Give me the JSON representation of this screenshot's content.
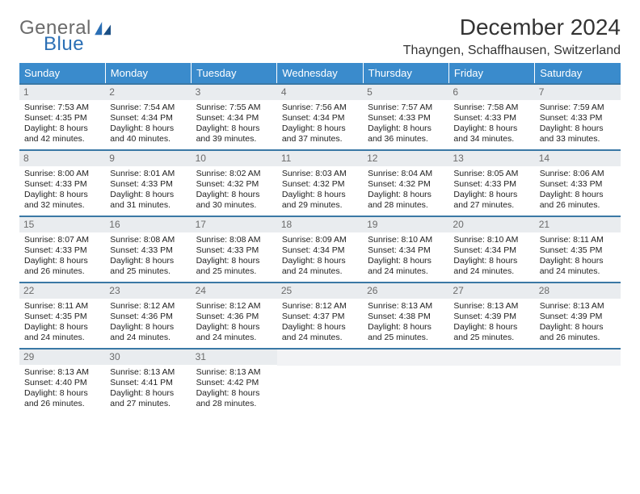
{
  "logo": {
    "word1": "General",
    "word2": "Blue"
  },
  "title": "December 2024",
  "location": "Thayngen, Schaffhausen, Switzerland",
  "colors": {
    "header_bg": "#3a8bcc",
    "header_text": "#ffffff",
    "row_border": "#3a78a5",
    "daynum_bg": "#e9ecef",
    "daynum_text": "#6b6b6b",
    "logo_gray": "#6b6b6b",
    "logo_blue": "#2b6fb5",
    "page_bg": "#ffffff"
  },
  "day_headers": [
    "Sunday",
    "Monday",
    "Tuesday",
    "Wednesday",
    "Thursday",
    "Friday",
    "Saturday"
  ],
  "weeks": [
    [
      {
        "n": "1",
        "sr": "Sunrise: 7:53 AM",
        "ss": "Sunset: 4:35 PM",
        "d1": "Daylight: 8 hours",
        "d2": "and 42 minutes."
      },
      {
        "n": "2",
        "sr": "Sunrise: 7:54 AM",
        "ss": "Sunset: 4:34 PM",
        "d1": "Daylight: 8 hours",
        "d2": "and 40 minutes."
      },
      {
        "n": "3",
        "sr": "Sunrise: 7:55 AM",
        "ss": "Sunset: 4:34 PM",
        "d1": "Daylight: 8 hours",
        "d2": "and 39 minutes."
      },
      {
        "n": "4",
        "sr": "Sunrise: 7:56 AM",
        "ss": "Sunset: 4:34 PM",
        "d1": "Daylight: 8 hours",
        "d2": "and 37 minutes."
      },
      {
        "n": "5",
        "sr": "Sunrise: 7:57 AM",
        "ss": "Sunset: 4:33 PM",
        "d1": "Daylight: 8 hours",
        "d2": "and 36 minutes."
      },
      {
        "n": "6",
        "sr": "Sunrise: 7:58 AM",
        "ss": "Sunset: 4:33 PM",
        "d1": "Daylight: 8 hours",
        "d2": "and 34 minutes."
      },
      {
        "n": "7",
        "sr": "Sunrise: 7:59 AM",
        "ss": "Sunset: 4:33 PM",
        "d1": "Daylight: 8 hours",
        "d2": "and 33 minutes."
      }
    ],
    [
      {
        "n": "8",
        "sr": "Sunrise: 8:00 AM",
        "ss": "Sunset: 4:33 PM",
        "d1": "Daylight: 8 hours",
        "d2": "and 32 minutes."
      },
      {
        "n": "9",
        "sr": "Sunrise: 8:01 AM",
        "ss": "Sunset: 4:33 PM",
        "d1": "Daylight: 8 hours",
        "d2": "and 31 minutes."
      },
      {
        "n": "10",
        "sr": "Sunrise: 8:02 AM",
        "ss": "Sunset: 4:32 PM",
        "d1": "Daylight: 8 hours",
        "d2": "and 30 minutes."
      },
      {
        "n": "11",
        "sr": "Sunrise: 8:03 AM",
        "ss": "Sunset: 4:32 PM",
        "d1": "Daylight: 8 hours",
        "d2": "and 29 minutes."
      },
      {
        "n": "12",
        "sr": "Sunrise: 8:04 AM",
        "ss": "Sunset: 4:32 PM",
        "d1": "Daylight: 8 hours",
        "d2": "and 28 minutes."
      },
      {
        "n": "13",
        "sr": "Sunrise: 8:05 AM",
        "ss": "Sunset: 4:33 PM",
        "d1": "Daylight: 8 hours",
        "d2": "and 27 minutes."
      },
      {
        "n": "14",
        "sr": "Sunrise: 8:06 AM",
        "ss": "Sunset: 4:33 PM",
        "d1": "Daylight: 8 hours",
        "d2": "and 26 minutes."
      }
    ],
    [
      {
        "n": "15",
        "sr": "Sunrise: 8:07 AM",
        "ss": "Sunset: 4:33 PM",
        "d1": "Daylight: 8 hours",
        "d2": "and 26 minutes."
      },
      {
        "n": "16",
        "sr": "Sunrise: 8:08 AM",
        "ss": "Sunset: 4:33 PM",
        "d1": "Daylight: 8 hours",
        "d2": "and 25 minutes."
      },
      {
        "n": "17",
        "sr": "Sunrise: 8:08 AM",
        "ss": "Sunset: 4:33 PM",
        "d1": "Daylight: 8 hours",
        "d2": "and 25 minutes."
      },
      {
        "n": "18",
        "sr": "Sunrise: 8:09 AM",
        "ss": "Sunset: 4:34 PM",
        "d1": "Daylight: 8 hours",
        "d2": "and 24 minutes."
      },
      {
        "n": "19",
        "sr": "Sunrise: 8:10 AM",
        "ss": "Sunset: 4:34 PM",
        "d1": "Daylight: 8 hours",
        "d2": "and 24 minutes."
      },
      {
        "n": "20",
        "sr": "Sunrise: 8:10 AM",
        "ss": "Sunset: 4:34 PM",
        "d1": "Daylight: 8 hours",
        "d2": "and 24 minutes."
      },
      {
        "n": "21",
        "sr": "Sunrise: 8:11 AM",
        "ss": "Sunset: 4:35 PM",
        "d1": "Daylight: 8 hours",
        "d2": "and 24 minutes."
      }
    ],
    [
      {
        "n": "22",
        "sr": "Sunrise: 8:11 AM",
        "ss": "Sunset: 4:35 PM",
        "d1": "Daylight: 8 hours",
        "d2": "and 24 minutes."
      },
      {
        "n": "23",
        "sr": "Sunrise: 8:12 AM",
        "ss": "Sunset: 4:36 PM",
        "d1": "Daylight: 8 hours",
        "d2": "and 24 minutes."
      },
      {
        "n": "24",
        "sr": "Sunrise: 8:12 AM",
        "ss": "Sunset: 4:36 PM",
        "d1": "Daylight: 8 hours",
        "d2": "and 24 minutes."
      },
      {
        "n": "25",
        "sr": "Sunrise: 8:12 AM",
        "ss": "Sunset: 4:37 PM",
        "d1": "Daylight: 8 hours",
        "d2": "and 24 minutes."
      },
      {
        "n": "26",
        "sr": "Sunrise: 8:13 AM",
        "ss": "Sunset: 4:38 PM",
        "d1": "Daylight: 8 hours",
        "d2": "and 25 minutes."
      },
      {
        "n": "27",
        "sr": "Sunrise: 8:13 AM",
        "ss": "Sunset: 4:39 PM",
        "d1": "Daylight: 8 hours",
        "d2": "and 25 minutes."
      },
      {
        "n": "28",
        "sr": "Sunrise: 8:13 AM",
        "ss": "Sunset: 4:39 PM",
        "d1": "Daylight: 8 hours",
        "d2": "and 26 minutes."
      }
    ],
    [
      {
        "n": "29",
        "sr": "Sunrise: 8:13 AM",
        "ss": "Sunset: 4:40 PM",
        "d1": "Daylight: 8 hours",
        "d2": "and 26 minutes."
      },
      {
        "n": "30",
        "sr": "Sunrise: 8:13 AM",
        "ss": "Sunset: 4:41 PM",
        "d1": "Daylight: 8 hours",
        "d2": "and 27 minutes."
      },
      {
        "n": "31",
        "sr": "Sunrise: 8:13 AM",
        "ss": "Sunset: 4:42 PM",
        "d1": "Daylight: 8 hours",
        "d2": "and 28 minutes."
      },
      {
        "n": "",
        "sr": "",
        "ss": "",
        "d1": "",
        "d2": ""
      },
      {
        "n": "",
        "sr": "",
        "ss": "",
        "d1": "",
        "d2": ""
      },
      {
        "n": "",
        "sr": "",
        "ss": "",
        "d1": "",
        "d2": ""
      },
      {
        "n": "",
        "sr": "",
        "ss": "",
        "d1": "",
        "d2": ""
      }
    ]
  ]
}
